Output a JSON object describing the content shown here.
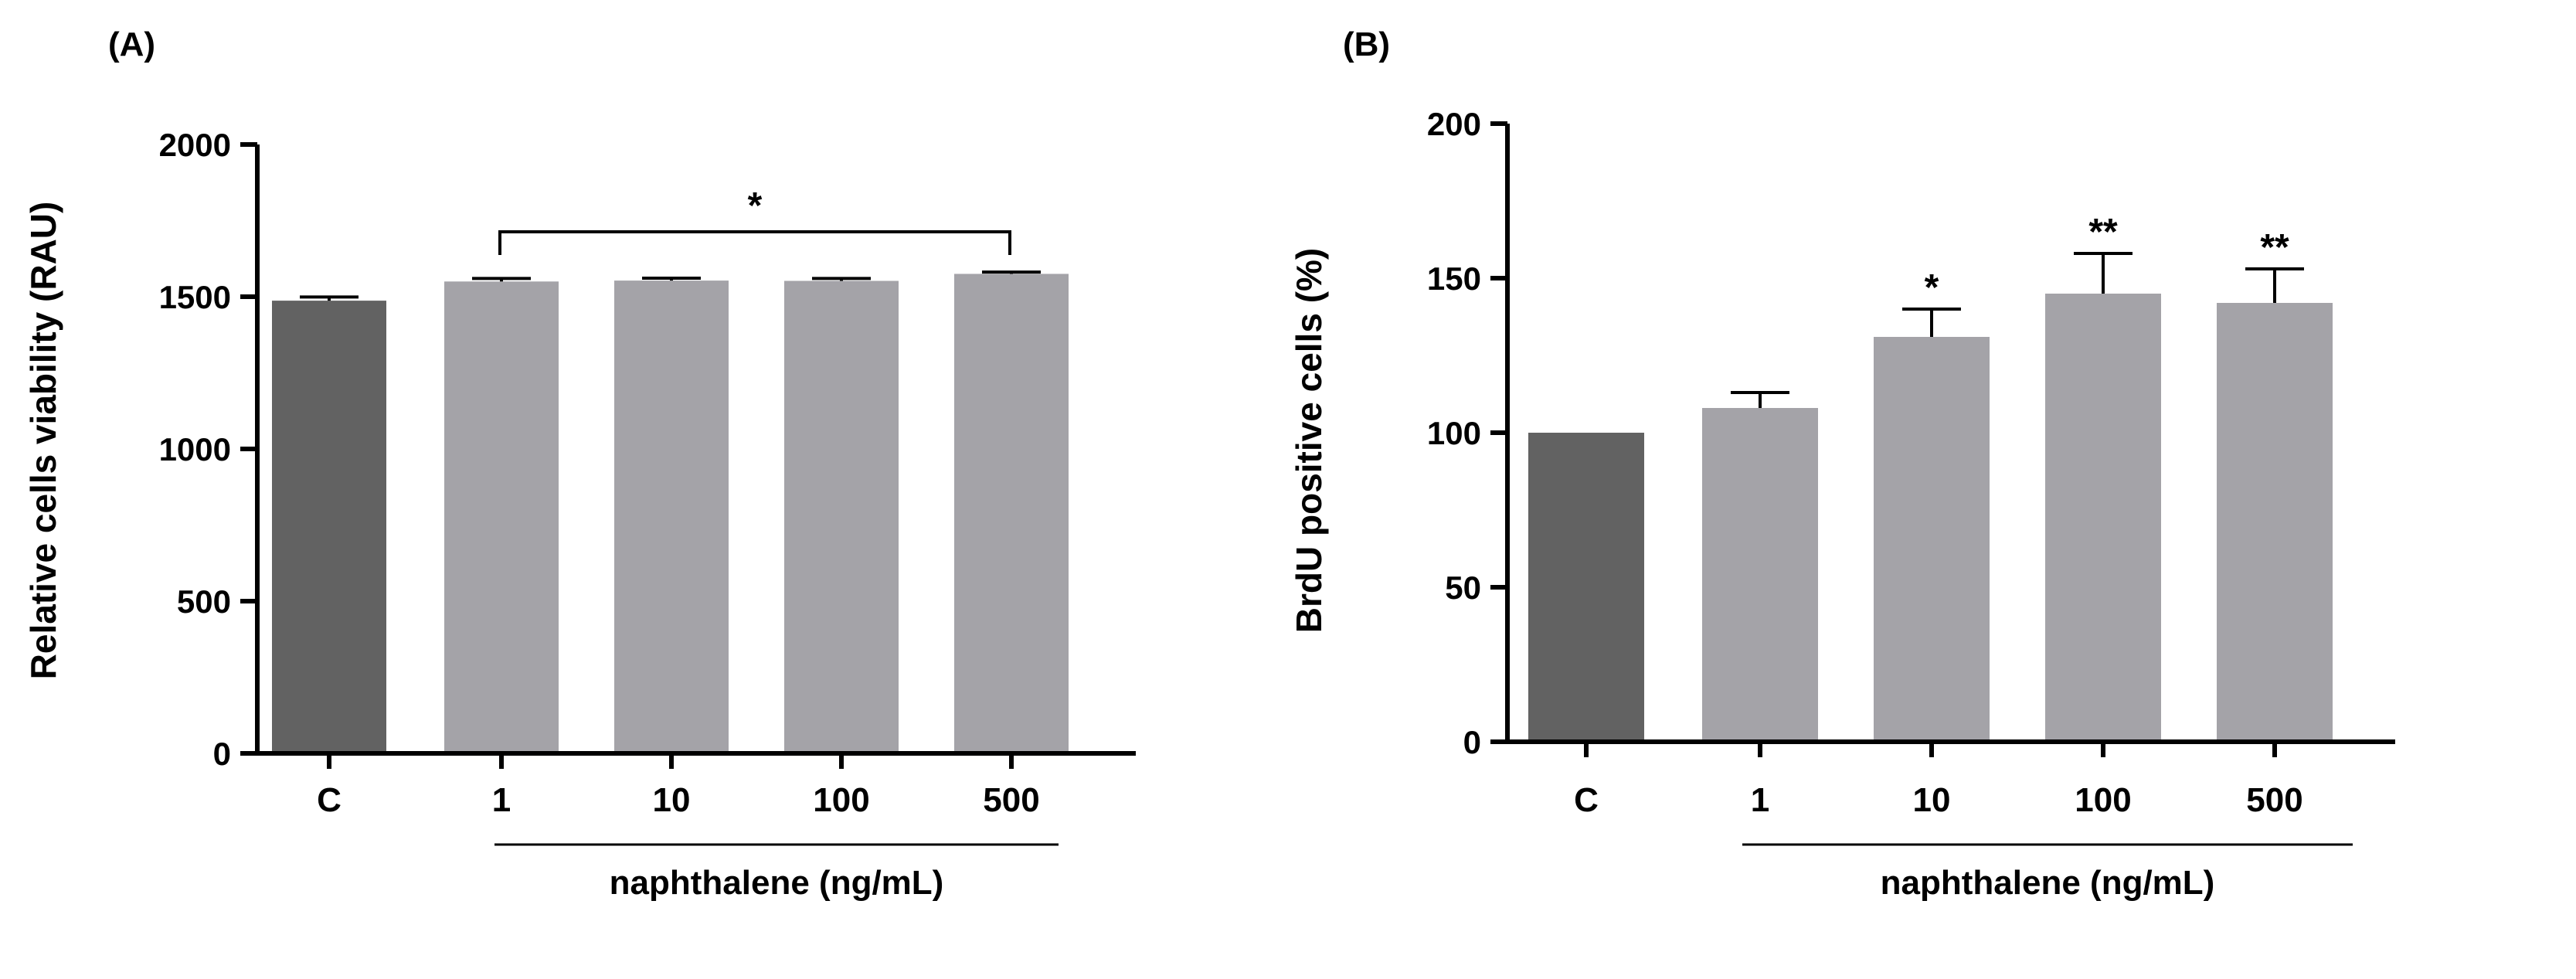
{
  "chart_data": [
    {
      "panel_label": "(A)",
      "type": "bar",
      "categories": [
        "C",
        "1",
        "10",
        "100",
        "500"
      ],
      "values": [
        1487,
        1550,
        1553,
        1552,
        1575
      ],
      "errors": [
        12,
        10,
        8,
        8,
        6
      ],
      "bar_colors": [
        "#626262",
        "#a4a3a8",
        "#a4a3a8",
        "#a4a3a8",
        "#a4a3a8"
      ],
      "ylabel": "Relative cells viability (RAU)",
      "xlabel": "naphthalene (ng/mL)",
      "ylim": [
        0,
        2000
      ],
      "yticks": [
        0,
        500,
        1000,
        1500,
        2000
      ],
      "significance": [
        {
          "type": "bracket",
          "from": 1,
          "to": 4,
          "label": "*"
        }
      ]
    },
    {
      "panel_label": "(B)",
      "type": "bar",
      "categories": [
        "C",
        "1",
        "10",
        "100",
        "500"
      ],
      "values": [
        100,
        108,
        131,
        145,
        142
      ],
      "errors": [
        0,
        5,
        9,
        13,
        11
      ],
      "bar_colors": [
        "#626262",
        "#a4a3a8",
        "#a4a3a8",
        "#a4a3a8",
        "#a4a3a8"
      ],
      "ylabel": "BrdU positive cells (%)",
      "xlabel": "naphthalene (ng/mL)",
      "ylim": [
        0,
        200
      ],
      "yticks": [
        0,
        50,
        100,
        150,
        200
      ],
      "significance": [
        {
          "type": "bar",
          "index": 2,
          "label": "*"
        },
        {
          "type": "bar",
          "index": 3,
          "label": "**"
        },
        {
          "type": "bar",
          "index": 4,
          "label": "**"
        }
      ]
    }
  ]
}
